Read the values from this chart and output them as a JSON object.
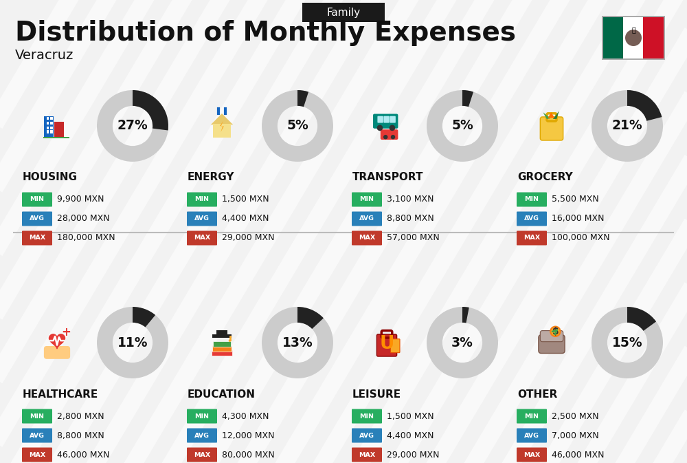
{
  "title": "Distribution of Monthly Expenses",
  "subtitle": "Family",
  "location": "Veracruz",
  "bg_color": "#f2f2f2",
  "categories": [
    {
      "name": "HOUSING",
      "percent": 27,
      "min_val": "9,900 MXN",
      "avg_val": "28,000 MXN",
      "max_val": "180,000 MXN",
      "row": 0,
      "col": 0
    },
    {
      "name": "ENERGY",
      "percent": 5,
      "min_val": "1,500 MXN",
      "avg_val": "4,400 MXN",
      "max_val": "29,000 MXN",
      "row": 0,
      "col": 1
    },
    {
      "name": "TRANSPORT",
      "percent": 5,
      "min_val": "3,100 MXN",
      "avg_val": "8,800 MXN",
      "max_val": "57,000 MXN",
      "row": 0,
      "col": 2
    },
    {
      "name": "GROCERY",
      "percent": 21,
      "min_val": "5,500 MXN",
      "avg_val": "16,000 MXN",
      "max_val": "100,000 MXN",
      "row": 0,
      "col": 3
    },
    {
      "name": "HEALTHCARE",
      "percent": 11,
      "min_val": "2,800 MXN",
      "avg_val": "8,800 MXN",
      "max_val": "46,000 MXN",
      "row": 1,
      "col": 0
    },
    {
      "name": "EDUCATION",
      "percent": 13,
      "min_val": "4,300 MXN",
      "avg_val": "12,000 MXN",
      "max_val": "80,000 MXN",
      "row": 1,
      "col": 1
    },
    {
      "name": "LEISURE",
      "percent": 3,
      "min_val": "1,500 MXN",
      "avg_val": "4,400 MXN",
      "max_val": "29,000 MXN",
      "row": 1,
      "col": 2
    },
    {
      "name": "OTHER",
      "percent": 15,
      "min_val": "2,500 MXN",
      "avg_val": "7,000 MXN",
      "max_val": "46,000 MXN",
      "row": 1,
      "col": 3
    }
  ],
  "color_min": "#27ae60",
  "color_avg": "#2980b9",
  "color_max": "#c0392b",
  "arc_color_filled": "#222222",
  "arc_color_empty": "#cccccc",
  "label_color": "#111111",
  "title_color": "#111111",
  "subtitle_bg": "#1a1a1a",
  "subtitle_fg": "#ffffff",
  "mexico_green": "#006847",
  "mexico_red": "#ce1126",
  "mexico_white": "#ffffff",
  "stripe_color": "#ffffff",
  "stripe_alpha": 0.55,
  "stripe_lw": 18
}
